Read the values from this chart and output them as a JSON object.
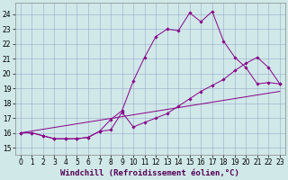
{
  "xlabel": "Windchill (Refroidissement éolien,°C)",
  "background_color": "#d0e8e8",
  "line_color": "#880088",
  "xlim": [
    -0.5,
    23.5
  ],
  "ylim": [
    14.5,
    24.8
  ],
  "yticks": [
    15,
    16,
    17,
    18,
    19,
    20,
    21,
    22,
    23,
    24
  ],
  "xticks": [
    0,
    1,
    2,
    3,
    4,
    5,
    6,
    7,
    8,
    9,
    10,
    11,
    12,
    13,
    14,
    15,
    16,
    17,
    18,
    19,
    20,
    21,
    22,
    23
  ],
  "line1_x": [
    0,
    1,
    2,
    3,
    4,
    5,
    6,
    7,
    8,
    9,
    10,
    11,
    12,
    13,
    14,
    15,
    16,
    17,
    18,
    19,
    20,
    21,
    22,
    23
  ],
  "line1_y": [
    16.0,
    16.0,
    15.8,
    15.6,
    15.6,
    15.6,
    15.7,
    16.1,
    16.9,
    17.5,
    19.5,
    21.1,
    22.5,
    23.0,
    22.9,
    24.1,
    23.5,
    24.2,
    22.2,
    21.1,
    20.4,
    19.3,
    19.4,
    19.3
  ],
  "line2_x": [
    0,
    1,
    2,
    3,
    4,
    5,
    6,
    7,
    8,
    9,
    10,
    11,
    12,
    13,
    14,
    15,
    16,
    17,
    18,
    19,
    20,
    21,
    22,
    23
  ],
  "line2_y": [
    16.0,
    16.0,
    15.8,
    15.6,
    15.6,
    15.6,
    15.7,
    16.1,
    16.2,
    17.4,
    16.4,
    16.7,
    17.0,
    17.3,
    17.8,
    18.3,
    18.8,
    19.2,
    19.6,
    20.2,
    20.7,
    21.1,
    20.4,
    19.3
  ],
  "line3_x": [
    0,
    23
  ],
  "line3_y": [
    16.0,
    18.8
  ],
  "marker": "D",
  "marker_size": 1.8,
  "grid_color": "#99aacc",
  "tick_fontsize": 5.5,
  "xlabel_fontsize": 6.5
}
